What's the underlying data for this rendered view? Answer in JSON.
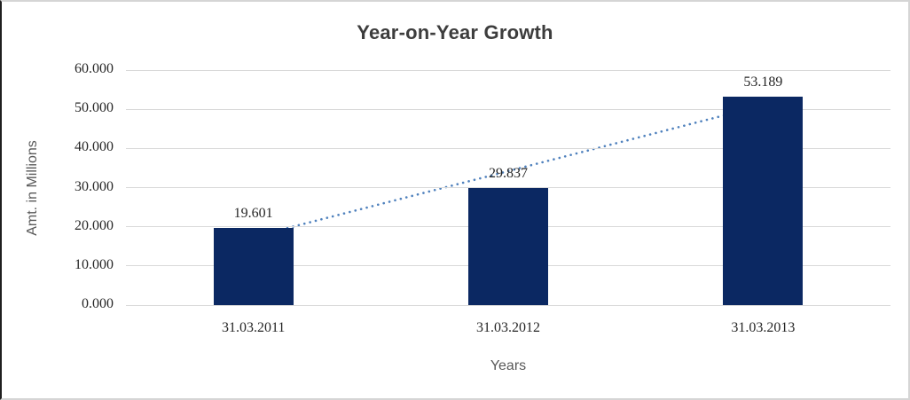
{
  "chart": {
    "title": "Year-on-Year Growth",
    "y_axis_title": "Amt. in Millions",
    "x_axis_title": "Years"
  },
  "chart_data": {
    "type": "bar",
    "title": "Year-on-Year Growth",
    "categories": [
      "31.03.2011",
      "31.03.2012",
      "31.03.2013"
    ],
    "values": [
      19.601,
      29.837,
      53.189
    ],
    "value_labels": [
      "19.601",
      "29.837",
      "53.189"
    ],
    "xlabel": "Years",
    "ylabel": "Amt. in Millions",
    "ylim": [
      0,
      60
    ],
    "ytick_step": 10,
    "ytick_labels": [
      "0.000",
      "10.000",
      "20.000",
      "30.000",
      "40.000",
      "50.000",
      "60.000"
    ],
    "grid": true,
    "legend": false,
    "trendline": {
      "type": "linear",
      "style": "dotted",
      "color": "#4f81bd"
    },
    "colors": {
      "bar": "#0b2862",
      "gridline": "#d9d9d9",
      "title_text": "#3d3d3d",
      "label_text": "#262626",
      "axis_title_text": "#595959"
    }
  }
}
